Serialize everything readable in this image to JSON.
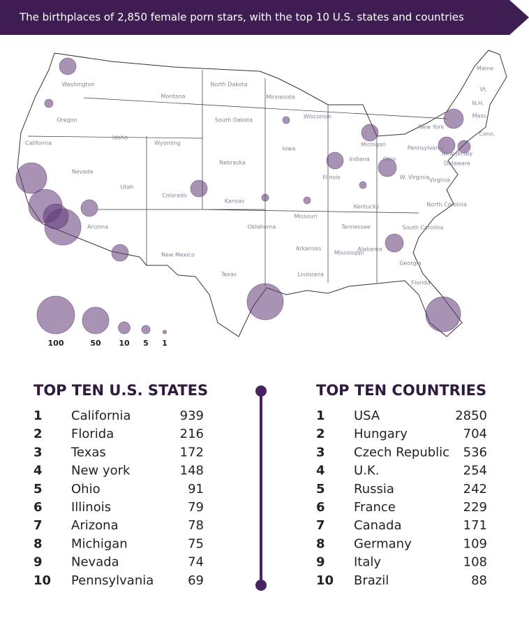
{
  "header": {
    "title": "The birthplaces of 2,850 female porn stars, with the top 10 U.S. states and countries"
  },
  "map": {
    "labels": [
      "Washington",
      "Oregon",
      "California",
      "Idaho",
      "Nevada",
      "Montana",
      "Wyoming",
      "Utah",
      "Colorado",
      "Arizona",
      "New Mexico",
      "North Dakota",
      "South Dakota",
      "Nebraska",
      "Kansas",
      "Oklahoma",
      "Texas",
      "Minnesota",
      "Iowa",
      "Missouri",
      "Arkansas",
      "Louisiana",
      "Wisconsin",
      "Illinois",
      "Michigan",
      "Indiana",
      "Ohio",
      "Kentucky",
      "Tennessee",
      "Mississippi",
      "Alabama",
      "Georgia",
      "Florida",
      "South Carolina",
      "North Carolina",
      "Virginia",
      "W. Virginia",
      "Pennsylvania",
      "New York",
      "New Jersey",
      "Delaware",
      "Maine",
      "Vt.",
      "N.H.",
      "Mass.",
      "Conn."
    ],
    "legend": [
      100,
      50,
      10,
      5,
      1
    ]
  },
  "states": {
    "title": "TOP TEN U.S. STATES",
    "rows": [
      [
        1,
        "California",
        939
      ],
      [
        2,
        "Florida",
        216
      ],
      [
        3,
        "Texas",
        172
      ],
      [
        4,
        "New york",
        148
      ],
      [
        5,
        "Ohio",
        91
      ],
      [
        6,
        "Illinois",
        79
      ],
      [
        7,
        "Arizona",
        78
      ],
      [
        8,
        "Michigan",
        75
      ],
      [
        9,
        "Nevada",
        74
      ],
      [
        10,
        "Pennsylvania",
        69
      ]
    ]
  },
  "countries": {
    "title": "TOP TEN COUNTRIES",
    "rows": [
      [
        1,
        "USA",
        2850
      ],
      [
        2,
        "Hungary",
        704
      ],
      [
        3,
        "Czech Republic",
        536
      ],
      [
        4,
        "U.K.",
        254
      ],
      [
        5,
        "Russia",
        242
      ],
      [
        6,
        "France",
        229
      ],
      [
        7,
        "Canada",
        171
      ],
      [
        8,
        "Germany",
        109
      ],
      [
        9,
        "Italy",
        108
      ],
      [
        10,
        "Brazil",
        88
      ]
    ]
  }
}
